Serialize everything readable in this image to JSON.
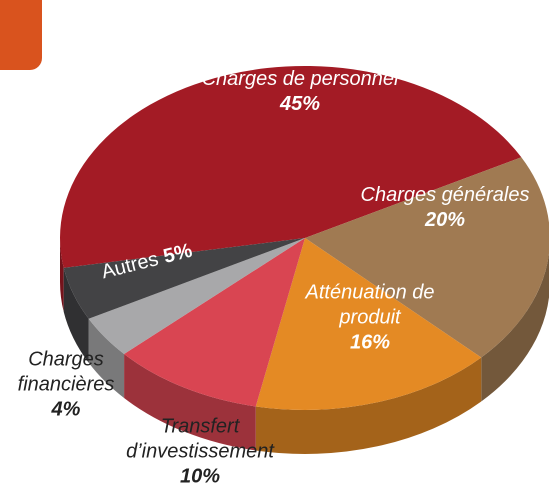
{
  "chart_data": {
    "type": "pie",
    "categories": [
      "Charges de personnel",
      "Charges générales",
      "Atténuation de produit",
      "Transfert d’investissement",
      "Charges financières",
      "Autres"
    ],
    "values": [
      45,
      20,
      16,
      10,
      4,
      5
    ],
    "value_labels": [
      "45%",
      "20%",
      "16%",
      "10%",
      "4%",
      "5%"
    ],
    "colors": [
      "#a31b25",
      "#a07a52",
      "#e48a24",
      "#d94552",
      "#a8a8aa",
      "#434345"
    ]
  }
}
